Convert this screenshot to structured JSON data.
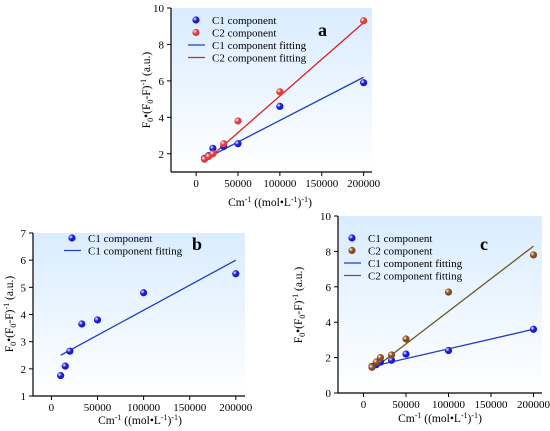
{
  "figure": {
    "colors": {
      "c1_marker": "#1a1ad6",
      "c1_line": "#1f3fbf",
      "c2_marker": "#e23a3a",
      "c2_line": "#e01f1f",
      "c2_marker_c": "#8b4a1e",
      "c2_line_c": "#6b5a1a",
      "plot_bg_top": "#d9ecff",
      "plot_bg_bottom": "#ffffff"
    }
  },
  "chart_data": [
    {
      "panel": "a",
      "type": "scatter",
      "panel_label": "a",
      "xlabel_main": "Cm",
      "xlabel_sup": "-1",
      "xlabel_rest": " ((mol•L",
      "xlabel_sup2": "-1",
      "xlabel_end": ")",
      "xlabel_sup3": "-1",
      "xlabel_tail": ")",
      "ylabel": "F0•(F0-F)-1 (a.u.)",
      "xlim": [
        -30000,
        210000
      ],
      "ylim": [
        1,
        10
      ],
      "xticks": [
        "0",
        "50000",
        "100000",
        "150000",
        "200000"
      ],
      "xtick_values": [
        0,
        50000,
        100000,
        150000,
        200000
      ],
      "yticks": [
        "2",
        "4",
        "6",
        "8",
        "10"
      ],
      "ytick_values": [
        2,
        4,
        6,
        8,
        10
      ],
      "legend": [
        "C1 component",
        "C2 component",
        "C1 component fitting",
        "C2 component fitting"
      ],
      "series": [
        {
          "name": "C1 component",
          "kind": "points",
          "color_key": "c1_marker",
          "x": [
            10000,
            15000,
            20000,
            33000,
            50000,
            100000,
            200000
          ],
          "y": [
            1.75,
            1.9,
            2.3,
            2.4,
            2.55,
            4.6,
            5.9
          ]
        },
        {
          "name": "C2 component",
          "kind": "points",
          "color_key": "c2_marker",
          "x": [
            10000,
            15000,
            20000,
            33000,
            50000,
            100000,
            200000
          ],
          "y": [
            1.7,
            1.85,
            2.0,
            2.55,
            3.8,
            5.4,
            9.3
          ]
        },
        {
          "name": "C1 component fitting",
          "kind": "line",
          "color_key": "c1_line",
          "x": [
            10000,
            200000
          ],
          "y": [
            1.7,
            6.2
          ]
        },
        {
          "name": "C2 component fitting",
          "kind": "line",
          "color_key": "c2_line",
          "x": [
            10000,
            200000
          ],
          "y": [
            1.55,
            9.2
          ]
        }
      ]
    },
    {
      "panel": "b",
      "type": "scatter",
      "panel_label": "b",
      "xlabel_main": "Cm",
      "xlabel_sup": "-1",
      "xlabel_rest": " ((mol•L",
      "xlabel_sup2": "-1",
      "xlabel_end": ")",
      "xlabel_sup3": "-1",
      "xlabel_tail": ")",
      "ylabel": "F0•(F0-F)-1 (a.u.)",
      "xlim": [
        -20000,
        210000
      ],
      "ylim": [
        1,
        7
      ],
      "xticks": [
        "0",
        "50000",
        "100000",
        "150000",
        "200000"
      ],
      "xtick_values": [
        0,
        50000,
        100000,
        150000,
        200000
      ],
      "yticks": [
        "1",
        "2",
        "3",
        "4",
        "5",
        "6",
        "7"
      ],
      "ytick_values": [
        1,
        2,
        3,
        4,
        5,
        6,
        7
      ],
      "legend": [
        "C1 component",
        "C1 component fitting"
      ],
      "series": [
        {
          "name": "C1 component",
          "kind": "points",
          "color_key": "c1_marker",
          "x": [
            10000,
            15000,
            20000,
            33000,
            50000,
            100000,
            200000
          ],
          "y": [
            1.75,
            2.1,
            2.65,
            3.65,
            3.8,
            4.8,
            5.5
          ]
        },
        {
          "name": "C1 component fitting",
          "kind": "line",
          "color_key": "c1_line",
          "x": [
            10000,
            200000
          ],
          "y": [
            2.5,
            6.0
          ]
        }
      ]
    },
    {
      "panel": "c",
      "type": "scatter",
      "panel_label": "c",
      "xlabel_main": "Cm",
      "xlabel_sup": "-1",
      "xlabel_rest": " ((mol•L",
      "xlabel_sup2": "-1",
      "xlabel_end": ")",
      "xlabel_sup3": "-1",
      "xlabel_tail": ")",
      "ylabel": "F0•(F0-F)-1 (a.u.)",
      "xlim": [
        -30000,
        210000
      ],
      "ylim": [
        0,
        10
      ],
      "xticks": [
        "0",
        "50000",
        "100000",
        "150000",
        "200000"
      ],
      "xtick_values": [
        0,
        50000,
        100000,
        150000,
        200000
      ],
      "yticks": [
        "0",
        "2",
        "4",
        "6",
        "8",
        "10"
      ],
      "ytick_values": [
        0,
        2,
        4,
        6,
        8,
        10
      ],
      "legend": [
        "C1 component",
        "C2 component",
        "C1 component fitting",
        "C2 component fitting"
      ],
      "series": [
        {
          "name": "C1 component",
          "kind": "points",
          "color_key": "c1_marker",
          "x": [
            10000,
            15000,
            20000,
            33000,
            50000,
            100000,
            200000
          ],
          "y": [
            1.5,
            1.6,
            1.75,
            1.85,
            2.2,
            2.4,
            3.6
          ]
        },
        {
          "name": "C2 component",
          "kind": "points",
          "color_key": "c2_marker_c",
          "x": [
            10000,
            15000,
            20000,
            33000,
            50000,
            100000,
            200000
          ],
          "y": [
            1.45,
            1.75,
            2.0,
            2.15,
            3.05,
            5.7,
            7.8
          ]
        },
        {
          "name": "C1 component fitting",
          "kind": "line",
          "color_key": "c1_line",
          "x": [
            10000,
            200000
          ],
          "y": [
            1.5,
            3.6
          ]
        },
        {
          "name": "C2 component fitting",
          "kind": "line",
          "color_key": "c2_line_c",
          "x": [
            10000,
            200000
          ],
          "y": [
            1.3,
            8.3
          ]
        }
      ]
    }
  ]
}
